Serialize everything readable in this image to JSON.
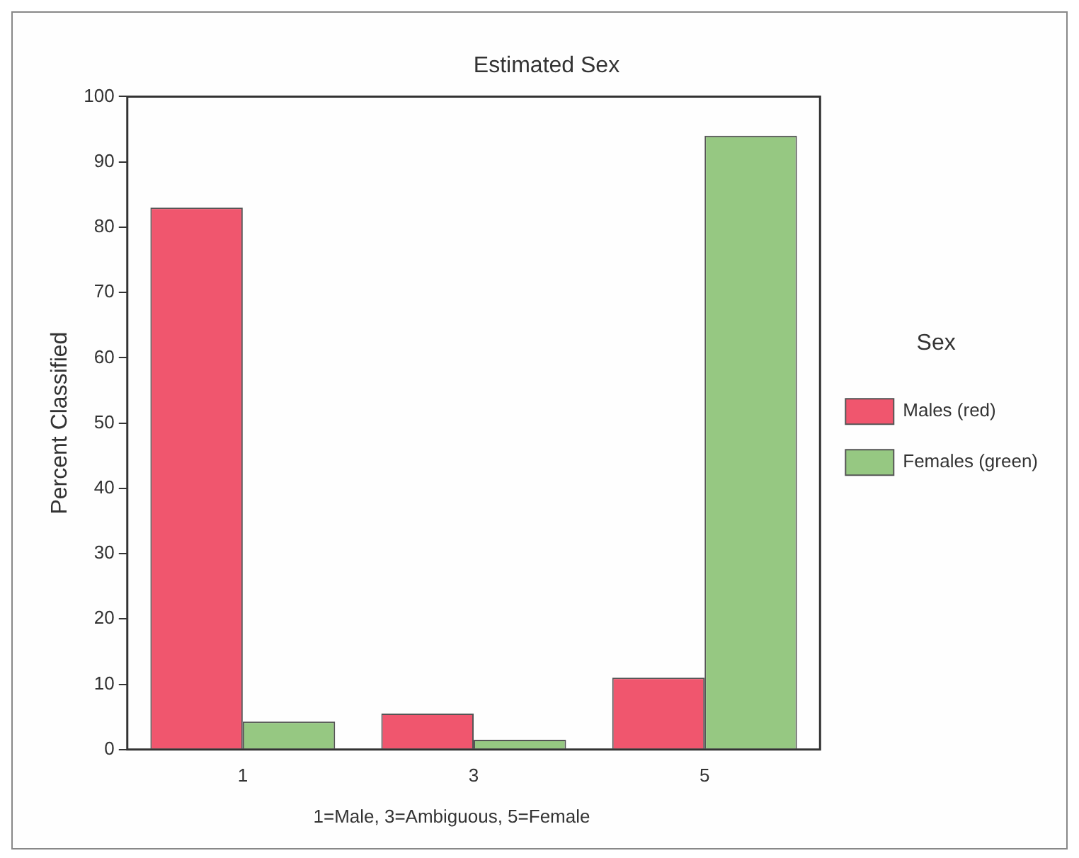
{
  "chart_data": {
    "type": "bar",
    "title": "Estimated Sex",
    "ylabel": "Percent Classified",
    "legend_title": "Sex",
    "categories": [
      "1",
      "3",
      "5"
    ],
    "series": [
      {
        "name": "Males (red)",
        "color": "#f0566e",
        "values": [
          83,
          5.5,
          11
        ]
      },
      {
        "name": "Females (green)",
        "color": "#96c882",
        "values": [
          4.3,
          1.5,
          94
        ]
      }
    ],
    "ylim": [
      0,
      100
    ],
    "yticks": [
      0,
      10,
      20,
      30,
      40,
      50,
      60,
      70,
      80,
      90,
      100
    ],
    "grid": false,
    "legend": "right",
    "annotations": [
      "1=Male, 3=Ambiguous, 5=Female"
    ]
  }
}
